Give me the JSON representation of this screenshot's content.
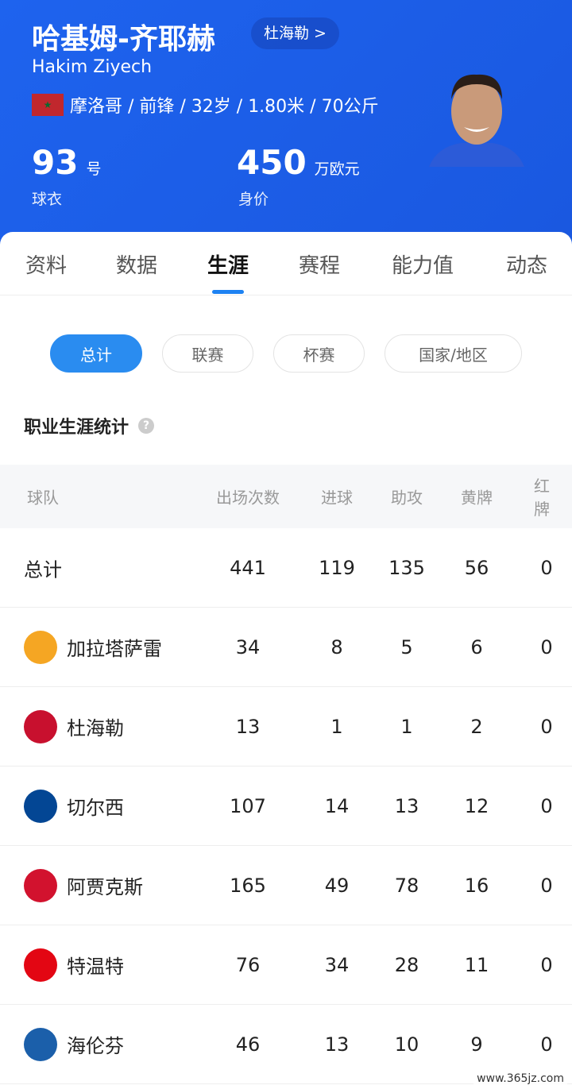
{
  "player": {
    "name_cn": "哈基姆-齐耶赫",
    "club": "杜海勒 >",
    "name_en": "Hakim Ziyech",
    "meta": "摩洛哥 / 前锋 / 32岁 / 1.80米 / 70公斤",
    "number": "93",
    "number_unit": "号",
    "number_label": "球衣",
    "value": "450",
    "value_unit": "万欧元",
    "value_label": "身价",
    "flag_color": "#c1272d"
  },
  "tabs": [
    {
      "label": "资料"
    },
    {
      "label": "数据"
    },
    {
      "label": "生涯",
      "active": true
    },
    {
      "label": "赛程"
    },
    {
      "label": "能力值"
    },
    {
      "label": "动态"
    }
  ],
  "filters": [
    {
      "label": "总计",
      "active": true
    },
    {
      "label": "联赛"
    },
    {
      "label": "杯赛"
    },
    {
      "label": "国家/地区"
    }
  ],
  "section_title": "职业生涯统计",
  "table": {
    "headers": [
      "球队",
      "出场次数",
      "进球",
      "助攻",
      "黄牌",
      "红牌"
    ],
    "rows": [
      {
        "team": "总计",
        "vals": [
          "441",
          "119",
          "135",
          "56",
          "0"
        ]
      },
      {
        "team": "加拉塔萨雷",
        "logo": "galatasaray",
        "color": "#f5a623",
        "vals": [
          "34",
          "8",
          "5",
          "6",
          "0"
        ]
      },
      {
        "team": "杜海勒",
        "logo": "duhail",
        "color": "#c8102e",
        "vals": [
          "13",
          "1",
          "1",
          "2",
          "0"
        ]
      },
      {
        "team": "切尔西",
        "logo": "chelsea",
        "color": "#034694",
        "vals": [
          "107",
          "14",
          "13",
          "12",
          "0"
        ]
      },
      {
        "team": "阿贾克斯",
        "logo": "ajax",
        "color": "#d2122e",
        "vals": [
          "165",
          "49",
          "78",
          "16",
          "0"
        ]
      },
      {
        "team": "特温特",
        "logo": "twente",
        "color": "#e30613",
        "vals": [
          "76",
          "34",
          "28",
          "11",
          "0"
        ]
      },
      {
        "team": "海伦芬",
        "logo": "heerenveen",
        "color": "#1b5faa",
        "vals": [
          "46",
          "13",
          "10",
          "9",
          "0"
        ]
      }
    ]
  },
  "watermark": "www.365jz.com"
}
